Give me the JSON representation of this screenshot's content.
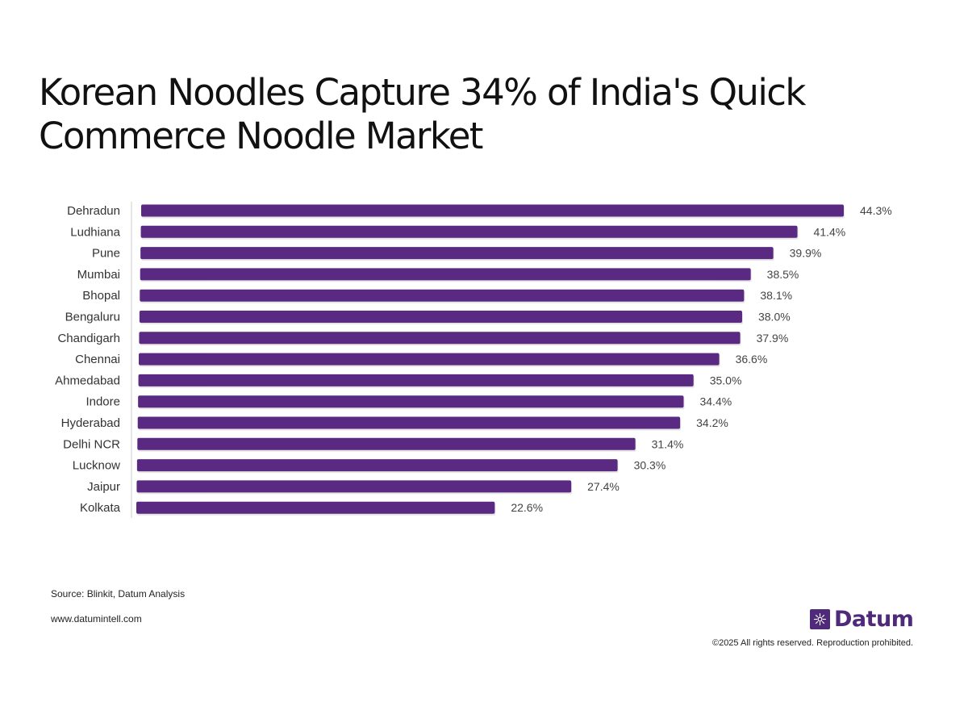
{
  "title": "Korean Noodles Capture 34% of India's Quick Commerce Noodle Market",
  "colors": {
    "bar": "#5a2a82",
    "axis": "#cccccc",
    "brand": "#4f2a7a"
  },
  "chart_data": {
    "type": "bar",
    "orientation": "horizontal",
    "title": "Korean Noodles Capture 34% of India's Quick Commerce Noodle Market",
    "categories": [
      "Dehradun",
      "Ludhiana",
      "Pune",
      "Mumbai",
      "Bhopal",
      "Bengaluru",
      "Chandigarh",
      "Chennai",
      "Ahmedabad",
      "Indore",
      "Hyderabad",
      "Delhi NCR",
      "Lucknow",
      "Jaipur",
      "Kolkata"
    ],
    "values": [
      44.3,
      41.4,
      39.9,
      38.5,
      38.1,
      38.0,
      37.9,
      36.6,
      35.0,
      34.4,
      34.2,
      31.4,
      30.3,
      27.4,
      22.6
    ],
    "value_labels": [
      "44.3%",
      "41.4%",
      "39.9%",
      "38.5%",
      "38.1%",
      "38.0%",
      "37.9%",
      "36.6%",
      "35.0%",
      "34.4%",
      "34.2%",
      "31.4%",
      "30.3%",
      "27.4%",
      "22.6%"
    ],
    "unit": "%",
    "xlim": [
      0,
      44.3
    ],
    "grid": false,
    "xlabel": "",
    "ylabel": ""
  },
  "footer": {
    "source": "Source: Blinkit, Datum Analysis",
    "website": "www.datumintell.com",
    "logo_text": "Datum",
    "logo_icon": "datum-logo-icon",
    "copyright": "©2025 All rights reserved. Reproduction prohibited."
  }
}
